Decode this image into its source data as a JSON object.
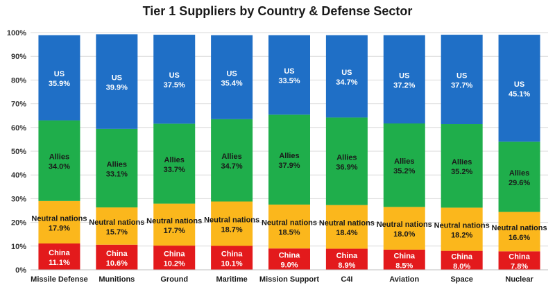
{
  "chart_data": {
    "type": "bar",
    "stacked": true,
    "percent": true,
    "title": "Tier 1 Suppliers by Country & Defense Sector",
    "xlabel": "",
    "ylabel": "",
    "ylim": [
      0,
      100
    ],
    "yticks": [
      "0%",
      "10%",
      "20%",
      "30%",
      "40%",
      "50%",
      "60%",
      "70%",
      "80%",
      "90%",
      "100%"
    ],
    "grid": true,
    "legend": "none",
    "categories": [
      "Missile Defense",
      "Munitions",
      "Ground",
      "Maritime",
      "Mission Support",
      "C4I",
      "Aviation",
      "Space",
      "Nuclear"
    ],
    "series": [
      {
        "name": "China",
        "color": "#e31a1c",
        "values": [
          11.1,
          10.6,
          10.2,
          10.1,
          9.0,
          8.9,
          8.5,
          8.0,
          7.8
        ],
        "labels": [
          "11.1%",
          "10.6%",
          "10.2%",
          "10.1%",
          "9.0%",
          "8.9%",
          "8.5%",
          "8.0%",
          "7.8%"
        ]
      },
      {
        "name": "Neutral nations",
        "color": "#fbb71c",
        "values": [
          17.9,
          15.7,
          17.7,
          18.7,
          18.5,
          18.4,
          18.0,
          18.2,
          16.6
        ],
        "labels": [
          "17.9%",
          "15.7%",
          "17.7%",
          "18.7%",
          "18.5%",
          "18.4%",
          "18.0%",
          "18.2%",
          "16.6%"
        ]
      },
      {
        "name": "Allies",
        "color": "#1fae4b",
        "values": [
          34.0,
          33.1,
          33.7,
          34.7,
          37.9,
          36.9,
          35.2,
          35.2,
          29.6
        ],
        "labels": [
          "34.0%",
          "33.1%",
          "33.7%",
          "34.7%",
          "37.9%",
          "36.9%",
          "35.2%",
          "35.2%",
          "29.6%"
        ]
      },
      {
        "name": "US",
        "color": "#1f6fc6",
        "values": [
          35.9,
          39.9,
          37.5,
          35.4,
          33.5,
          34.7,
          37.2,
          37.7,
          45.1
        ],
        "labels": [
          "35.9%",
          "39.9%",
          "37.5%",
          "35.4%",
          "33.5%",
          "34.7%",
          "37.2%",
          "37.7%",
          "45.1%"
        ]
      }
    ]
  }
}
